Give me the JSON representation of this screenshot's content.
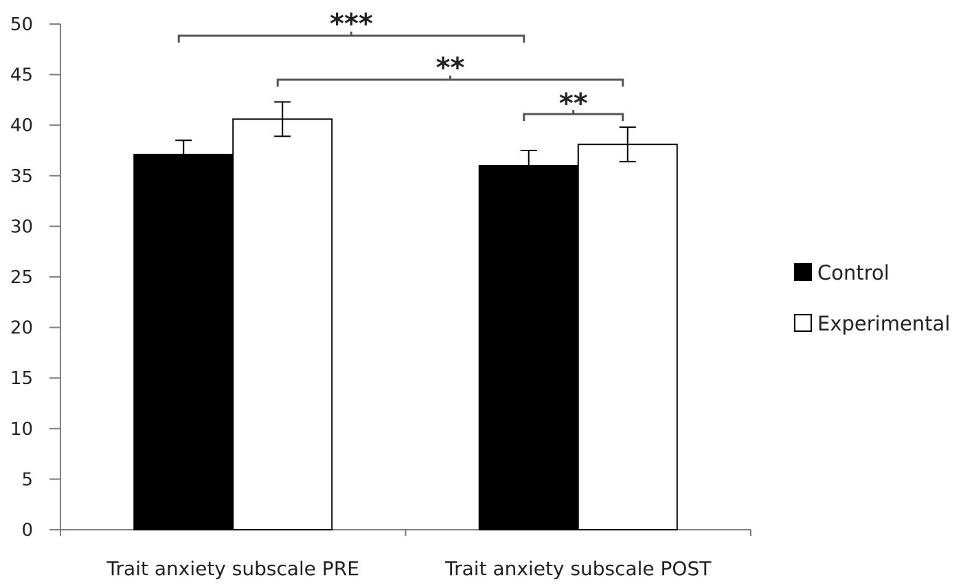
{
  "chart_data": {
    "type": "bar",
    "categories": [
      "Trait anxiety subscale PRE",
      "Trait anxiety subscale POST"
    ],
    "series": [
      {
        "name": "Control",
        "values": [
          37.1,
          36.0
        ],
        "errors": [
          1.4,
          1.5
        ],
        "color": "#000000"
      },
      {
        "name": "Experimental",
        "values": [
          40.6,
          38.1
        ],
        "errors": [
          1.7,
          1.7
        ],
        "color": "#ffffff"
      }
    ],
    "ylim": [
      0,
      50
    ],
    "yticks": [
      "0",
      "5",
      "10",
      "15",
      "20",
      "25",
      "30",
      "35",
      "40",
      "45",
      "50"
    ],
    "xlabel": "",
    "ylabel": "",
    "title": "",
    "legend_position": "right",
    "grid": false,
    "significance": [
      {
        "label": "***",
        "from": [
          0,
          0
        ],
        "to": [
          1,
          0
        ]
      },
      {
        "label": "**",
        "from": [
          0,
          1
        ],
        "to": [
          1,
          1
        ]
      },
      {
        "label": "**",
        "from": [
          1,
          0
        ],
        "to": [
          1,
          1
        ]
      }
    ]
  }
}
